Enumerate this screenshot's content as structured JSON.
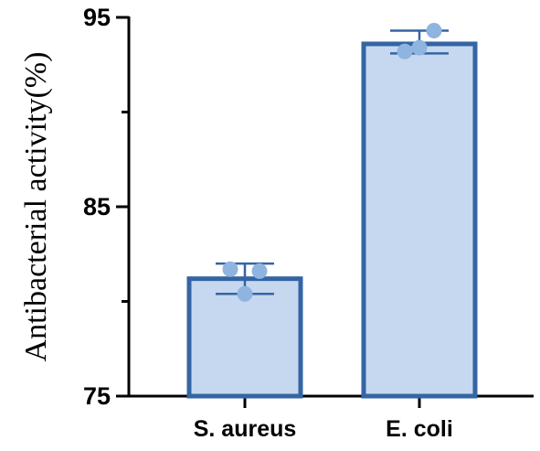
{
  "chart_data": {
    "type": "bar",
    "title": "",
    "xlabel": "",
    "ylabel": "Antibacterial activity(%)",
    "ylim": [
      75,
      95
    ],
    "yticks": [
      75,
      85,
      95
    ],
    "yticks_minor": [
      80,
      90
    ],
    "categories": [
      "S. aureus",
      "E. coli"
    ],
    "values": [
      81.2,
      93.6
    ],
    "error_upper": [
      82.0,
      94.3
    ],
    "error_lower": [
      80.4,
      93.1
    ],
    "points": [
      [
        81.7,
        81.6,
        80.4
      ],
      [
        93.2,
        94.3,
        93.4
      ]
    ],
    "grid": false,
    "legend": "none",
    "colors": {
      "bar_fill": "#c6d8ef",
      "bar_edge": "#3465a4",
      "point": "#8fb4e0",
      "error_bar": "#3465a4",
      "axis": "#000000"
    }
  }
}
